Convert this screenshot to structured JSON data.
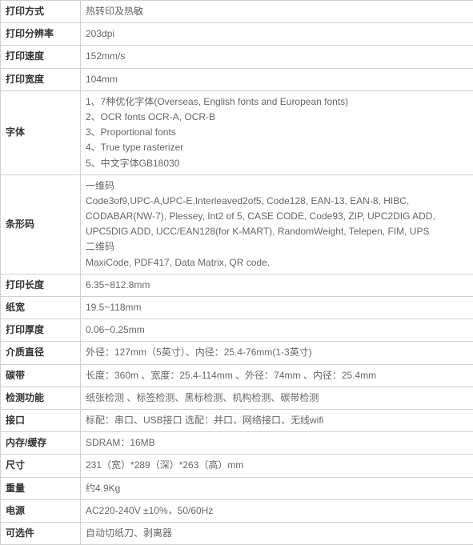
{
  "rows": [
    {
      "label": "打印方式",
      "value": "热转印及热敏"
    },
    {
      "label": "打印分辨率",
      "value": "203dpi"
    },
    {
      "label": "打印速度",
      "value": "152mm/s"
    },
    {
      "label": "打印宽度",
      "value": "104mm"
    },
    {
      "label": "字体",
      "lines": [
        "1、7种优化字体(Overseas, English fonts and European fonts)",
        "2、OCR fonts OCR-A, OCR-B",
        "3、Proportional fonts",
        "4、True type rasterizer",
        "5、中文字体GB18030"
      ]
    },
    {
      "label": "条形码",
      "lines": [
        "一维码",
        "Code3of9,UPC-A,UPC-E,Interleaved2of5, Code128, EAN-13, EAN-8, HIBC, CODABAR(NW-7), Plessey, Int2 of 5, CASE CODE, Code93, ZIP, UPC2DIG ADD, UPC5DIG ADD, UCC/EAN128(for K-MART), RandomWeight, Telepen, FIM, UPS",
        "二维码",
        "MaxiCode, PDF417, Data Matrix,  QR code."
      ]
    },
    {
      "label": "打印长度",
      "value": "6.35~812.8mm"
    },
    {
      "label": "纸宽",
      "value": "19.5~118mm"
    },
    {
      "label": "打印厚度",
      "value": "0.06~0.25mm"
    },
    {
      "label": "介质直径",
      "value": "外径：127mm（5英寸）、内径：25.4-76mm(1-3英寸)"
    },
    {
      "label": "碳带",
      "value": "长度：360m 、宽度：25.4-114mm 、外径：74mm 、内径：25.4mm"
    },
    {
      "label": "检测功能",
      "value": "纸张检测 、标签检测、黑标检测、机构检测、碳带检测"
    },
    {
      "label": "接口",
      "value": "标配：串口、USB接口    选配：并口、网络接口、无线wifi"
    },
    {
      "label": "内存/缓存",
      "value": "SDRAM：16MB"
    },
    {
      "label": "尺寸",
      "value": "231（宽）*289（深）*263（高）mm"
    },
    {
      "label": "重量",
      "value": "约4.9Kg"
    },
    {
      "label": "电源",
      "value": "AC220-240V ±10%，50/60Hz"
    },
    {
      "label": "可选件",
      "value": "自动切纸刀、剥离器"
    }
  ]
}
